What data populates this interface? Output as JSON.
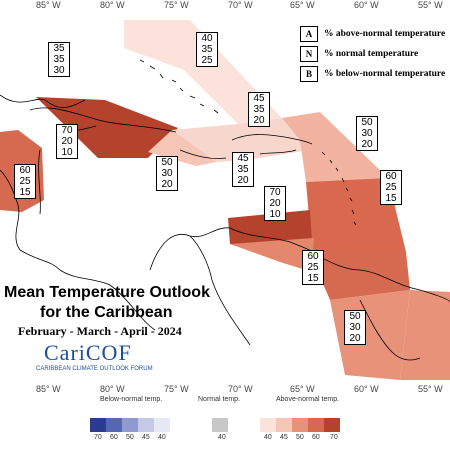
{
  "map": {
    "longitude_labels_top": [
      "85° W",
      "80° W",
      "75° W",
      "70° W",
      "65° W",
      "60° W",
      "55° W"
    ],
    "longitude_labels_bottom": [
      "85° W",
      "80° W",
      "75° W",
      "70° W",
      "65° W",
      "60° W",
      "55° W"
    ],
    "regions": [
      {
        "id": "bahamas",
        "above": "40",
        "normal": "35",
        "below": "25",
        "color": "#fbe3dc"
      },
      {
        "id": "cuba-west",
        "above": "35",
        "normal": "35",
        "below": "30",
        "color": "#ffffff"
      },
      {
        "id": "cuba-east",
        "above": "70",
        "normal": "20",
        "below": "10",
        "color": "#b5422c"
      },
      {
        "id": "belize",
        "above": "60",
        "normal": "25",
        "below": "15",
        "color": "#d66a50"
      },
      {
        "id": "jamaica",
        "above": "50",
        "normal": "30",
        "below": "20",
        "color": "#f5c5b5"
      },
      {
        "id": "hispaniola",
        "above": "45",
        "normal": "35",
        "below": "20",
        "color": "#f7d6cb"
      },
      {
        "id": "hispaniola-south",
        "above": "45",
        "normal": "35",
        "below": "20",
        "color": "#f7d6cb"
      },
      {
        "id": "leeward",
        "above": "50",
        "normal": "30",
        "below": "20",
        "color": "#f2b3a0"
      },
      {
        "id": "windward",
        "above": "60",
        "normal": "25",
        "below": "15",
        "color": "#d9694e"
      },
      {
        "id": "abc-islands",
        "above": "70",
        "normal": "20",
        "below": "10",
        "color": "#b5422c"
      },
      {
        "id": "trinidad",
        "above": "60",
        "normal": "25",
        "below": "15",
        "color": "#d66a50"
      },
      {
        "id": "guianas",
        "above": "50",
        "normal": "30",
        "below": "20",
        "color": "#e8927a"
      }
    ]
  },
  "legend": {
    "rows": [
      {
        "key": "A",
        "text": "% above-normal temperature"
      },
      {
        "key": "N",
        "text": "% normal temperature"
      },
      {
        "key": "B",
        "text": "% below-normal temperature"
      }
    ]
  },
  "title": {
    "line1": "Mean Temperature Outlook",
    "line2": "for the Caribbean",
    "period": "February - March - April - 2024"
  },
  "logo": {
    "name": "CariCOF",
    "subtitle": "CARIBBEAN CLIMATE OUTLOOK FORUM"
  },
  "colorbar": {
    "below_label": "Below-normal temp.",
    "normal_label": "Normal temp.",
    "above_label": "Above-normal temp.",
    "below_ticks": [
      "70",
      "60",
      "50",
      "45",
      "40"
    ],
    "normal_ticks": [
      "40"
    ],
    "above_ticks": [
      "40",
      "45",
      "50",
      "60",
      "70"
    ],
    "below_colors": [
      "#2b3b8f",
      "#5566b3",
      "#8e9ad0",
      "#c3c9e6",
      "#e6e8f4"
    ],
    "normal_color": "#c8c8c8",
    "above_colors": [
      "#fbe3dc",
      "#f5c5b5",
      "#e8927a",
      "#d66a50",
      "#b5422c"
    ]
  }
}
